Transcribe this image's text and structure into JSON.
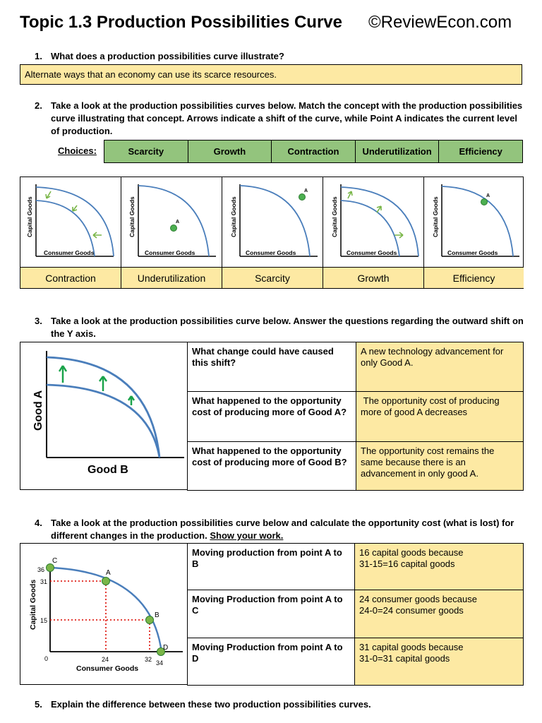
{
  "header": {
    "title": "Topic 1.3 Production Possibilities Curve",
    "site": "©ReviewEcon.com"
  },
  "q1": {
    "number": "1.",
    "question": "What does a production possibilities curve illustrate?",
    "answer": "Alternate ways that an economy can use its scarce resources."
  },
  "q2": {
    "number": "2.",
    "question": "Take a look at the production possibilities curves below. Match the concept with the production possibilities curve illustrating that concept. Arrows indicate a shift of the curve, while Point A indicates the current level of production.",
    "choices_label": "Choices:",
    "choices": [
      "Scarcity",
      "Growth",
      "Contraction",
      "Underutilization",
      "Efficiency"
    ],
    "graph_ylabel": "Capital Goods",
    "graph_xlabel": "Consumer Goods",
    "point_label": "A",
    "answers": [
      "Contraction",
      "Underutilization",
      "Scarcity",
      "Growth",
      "Efficiency"
    ]
  },
  "q3": {
    "number": "3.",
    "question": "Take a look at the production possibilities curve below. Answer the questions regarding the outward shift on the Y axis.",
    "graph_ylabel": "Good A",
    "graph_xlabel": "Good B",
    "rows": [
      {
        "q": "What change could have caused this shift?",
        "a": "A new technology advancement for only Good A."
      },
      {
        "q": "What happened to the opportunity cost of producing more of Good A?",
        "a": " The opportunity cost of producing more of good A decreases"
      },
      {
        "q": "What happened to the opportunity cost of producing more of Good B?",
        "a": "The opportunity cost remains the same because there is an advancement in only good A."
      }
    ]
  },
  "q4": {
    "number": "4.",
    "question": "Take a look at the production possibilities curve below and calculate the opportunity cost (what is lost) for different changes in the production.",
    "show_work": "Show your work.",
    "graph": {
      "ylabel": "Capital Goods",
      "xlabel": "Consumer Goods",
      "yticks": [
        "36",
        "31",
        "15"
      ],
      "xticks": [
        "0",
        "24",
        "32",
        "34"
      ],
      "points": [
        "C",
        "A",
        "B",
        "D"
      ]
    },
    "rows": [
      {
        "q": "Moving production from point A to B",
        "a1": "16 capital goods because",
        "a2": "31-15=16 capital goods"
      },
      {
        "q": "Moving Production from point A to C",
        "a1": "24 consumer goods because",
        "a2": "24-0=24 consumer goods"
      },
      {
        "q": "Moving Production from point A to D",
        "a1": "31 capital goods because",
        "a2": "31-0=31 capital goods"
      }
    ]
  },
  "q5": {
    "number": "5.",
    "question": "Explain the difference between these two production possibilities curves."
  },
  "colors": {
    "answer_fill": "#fde9a3",
    "choice_fill": "#93c47d",
    "curve": "#4a7ebb",
    "point": "#4caf50",
    "arrow_q2": "#7ab648",
    "arrow_q3": "#1aa34a",
    "dotted": "#e0231b"
  }
}
